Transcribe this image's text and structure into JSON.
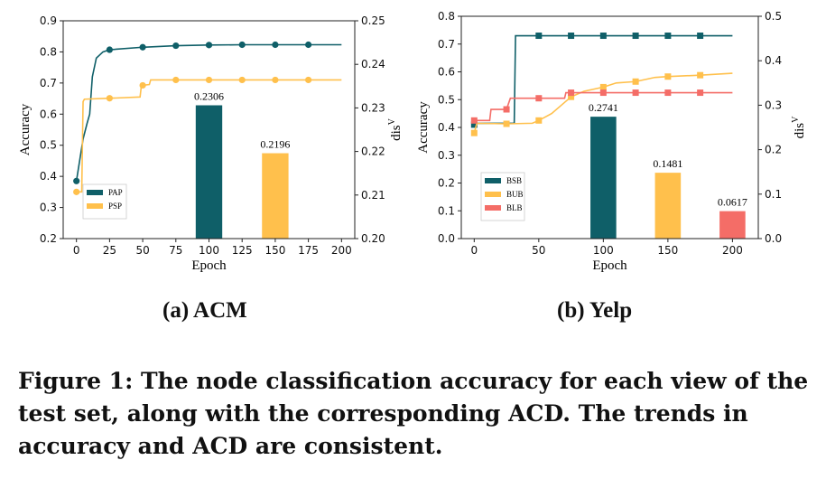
{
  "chart_data": [
    {
      "type": "line+bar",
      "subcaption": "(a) ACM",
      "xlabel": "Epoch",
      "ylabel": "Accuracy",
      "y2label": "dis",
      "y2label_sup": "V",
      "xlim": [
        -10,
        210
      ],
      "ylim": [
        0.2,
        0.9
      ],
      "y2lim": [
        0.2,
        0.25
      ],
      "xticks": [
        0,
        25,
        50,
        75,
        100,
        125,
        150,
        175,
        200
      ],
      "yticks": [
        "0.2",
        "0.3",
        "0.4",
        "0.5",
        "0.6",
        "0.7",
        "0.8",
        "0.9"
      ],
      "y2ticks": [
        "0.20",
        "0.21",
        "0.22",
        "0.23",
        "0.24",
        "0.25"
      ],
      "legend": "lower-left",
      "marker": "circle",
      "series": [
        {
          "name": "PAP",
          "color": "#0f5f68",
          "x": [
            0,
            5,
            8,
            10,
            12,
            15,
            20,
            25,
            50,
            75,
            100,
            125,
            150,
            175,
            200
          ],
          "y": [
            0.385,
            0.52,
            0.57,
            0.6,
            0.72,
            0.78,
            0.8,
            0.807,
            0.815,
            0.82,
            0.822,
            0.823,
            0.823,
            0.823,
            0.823
          ],
          "markers_x": [
            0,
            25,
            50,
            75,
            100,
            125,
            150,
            175
          ]
        },
        {
          "name": "PSP",
          "color": "#ffc04c",
          "x": [
            0,
            4,
            5,
            6,
            25,
            48,
            49,
            55,
            56,
            200
          ],
          "y": [
            0.35,
            0.35,
            0.64,
            0.648,
            0.651,
            0.655,
            0.692,
            0.695,
            0.71,
            0.71
          ],
          "markers_x": [
            0,
            25,
            50,
            75,
            100,
            125,
            150,
            175
          ]
        }
      ],
      "bars": [
        {
          "x": 100,
          "value": 0.2306,
          "label": "0.2306",
          "color": "#0f5f68"
        },
        {
          "x": 150,
          "value": 0.2196,
          "label": "0.2196",
          "color": "#ffc04c"
        }
      ]
    },
    {
      "type": "line+bar",
      "subcaption": "(b) Yelp",
      "xlabel": "Epoch",
      "ylabel": "Accuracy",
      "y2label": "dis",
      "y2label_sup": "V",
      "xlim": [
        -10,
        220
      ],
      "ylim": [
        0.0,
        0.8
      ],
      "y2lim": [
        0.0,
        0.5
      ],
      "xticks": [
        0,
        50,
        100,
        150,
        200
      ],
      "yticks": [
        "0.0",
        "0.1",
        "0.2",
        "0.3",
        "0.4",
        "0.5",
        "0.6",
        "0.7",
        "0.8"
      ],
      "y2ticks": [
        "0.0",
        "0.1",
        "0.2",
        "0.3",
        "0.4",
        "0.5"
      ],
      "legend": "lower-left",
      "marker": "square",
      "series": [
        {
          "name": "BSB",
          "color": "#0f5f68",
          "x": [
            0,
            2,
            31,
            32,
            200
          ],
          "y": [
            0.41,
            0.415,
            0.415,
            0.73,
            0.73
          ],
          "markers_x": [
            0,
            50,
            75,
            100,
            125,
            150,
            175
          ]
        },
        {
          "name": "BUB",
          "color": "#ffc04c",
          "x": [
            0,
            2,
            25,
            45,
            50,
            60,
            70,
            75,
            85,
            100,
            110,
            125,
            140,
            150,
            175,
            200
          ],
          "y": [
            0.38,
            0.415,
            0.413,
            0.415,
            0.425,
            0.45,
            0.49,
            0.51,
            0.53,
            0.545,
            0.56,
            0.565,
            0.58,
            0.583,
            0.588,
            0.595
          ],
          "markers_x": [
            0,
            25,
            50,
            75,
            100,
            125,
            150,
            175
          ]
        },
        {
          "name": "BLB",
          "color": "#f46d67",
          "x": [
            0,
            12,
            13,
            25,
            28,
            50,
            70,
            71,
            200
          ],
          "y": [
            0.425,
            0.425,
            0.465,
            0.465,
            0.505,
            0.505,
            0.505,
            0.525,
            0.525
          ],
          "markers_x": [
            0,
            25,
            50,
            75,
            100,
            125,
            150,
            175
          ]
        }
      ],
      "bars": [
        {
          "x": 100,
          "value": 0.2741,
          "label": "0.2741",
          "color": "#0f5f68"
        },
        {
          "x": 150,
          "value": 0.1481,
          "label": "0.1481",
          "color": "#ffc04c"
        },
        {
          "x": 200,
          "value": 0.0617,
          "label": "0.0617",
          "color": "#f46d67"
        }
      ]
    }
  ],
  "figure_caption": "Figure 1: The node classification accuracy for each view of the test set, along with the corresponding ACD. The trends in accuracy and ACD are consistent."
}
